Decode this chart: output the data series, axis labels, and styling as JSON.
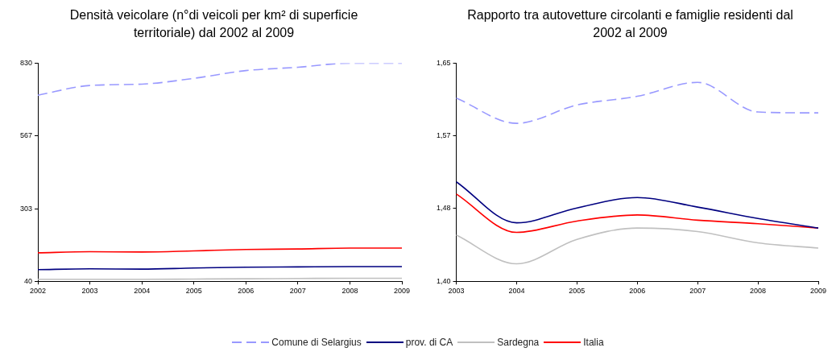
{
  "chart_data": [
    {
      "type": "line",
      "title": "Densità veicolare (n°di veicoli per km² di superficie territoriale) dal 2002 al 2009",
      "categories": [
        "2002",
        "2003",
        "2004",
        "2005",
        "2006",
        "2007",
        "2008",
        "2009"
      ],
      "ylim": [
        40,
        830
      ],
      "yticks": [
        40,
        303,
        567,
        830
      ],
      "grid": false,
      "legend": "bottom",
      "marker": "none",
      "series": [
        {
          "name": "Comune di Selargius",
          "color": "#9999ff",
          "line_style": "dashed",
          "values": [
            714,
            749,
            754,
            775,
            803,
            815,
            830,
            830
          ]
        },
        {
          "name": "prov. di CA",
          "color": "#000080",
          "line_style": "solid",
          "values": [
            82,
            85,
            84,
            88,
            91,
            92,
            93,
            93
          ]
        },
        {
          "name": "Sardegna",
          "color": "#c0c0c0",
          "line_style": "solid",
          "values": [
            47,
            47,
            47,
            48,
            49,
            50,
            51,
            51
          ]
        },
        {
          "name": "Italia",
          "color": "#ff0000",
          "line_style": "solid",
          "values": [
            143,
            147,
            146,
            150,
            155,
            157,
            160,
            160
          ]
        }
      ]
    },
    {
      "type": "line",
      "title": "Rapporto tra autovetture circolanti e famiglie residenti dal 2002 al 2009",
      "categories": [
        "2003",
        "2004",
        "2005",
        "2006",
        "2007",
        "2008",
        "2009"
      ],
      "ylim": [
        1.4,
        1.65
      ],
      "yticks": [
        {
          "value": 1.4,
          "label": "1,40"
        },
        {
          "value": 1.4833,
          "label": "1,48"
        },
        {
          "value": 1.5667,
          "label": "1,57"
        },
        {
          "value": 1.65,
          "label": "1,65"
        }
      ],
      "grid": false,
      "marker": "none",
      "series": [
        {
          "color": "#9999ff",
          "line_style": "dashed",
          "values": [
            1.61,
            1.581,
            1.602,
            1.612,
            1.628,
            1.594,
            1.593
          ]
        },
        {
          "color": "#000080",
          "line_style": "solid",
          "values": [
            1.514,
            1.467,
            1.484,
            1.496,
            1.485,
            1.472,
            1.461
          ]
        },
        {
          "color": "#c0c0c0",
          "line_style": "solid",
          "values": [
            1.453,
            1.42,
            1.448,
            1.461,
            1.457,
            1.444,
            1.438
          ]
        },
        {
          "color": "#ff0000",
          "line_style": "solid",
          "values": [
            1.5,
            1.456,
            1.469,
            1.476,
            1.47,
            1.466,
            1.461
          ]
        }
      ]
    }
  ]
}
